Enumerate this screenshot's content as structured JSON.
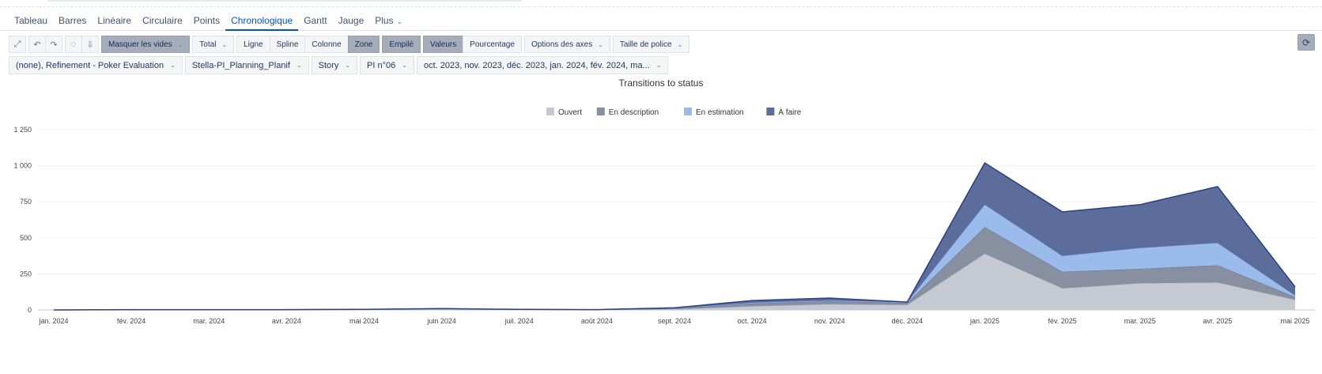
{
  "tabs": [
    {
      "label": "Tableau",
      "active": false
    },
    {
      "label": "Barres",
      "active": false
    },
    {
      "label": "Linéaire",
      "active": false
    },
    {
      "label": "Circulaire",
      "active": false
    },
    {
      "label": "Points",
      "active": false
    },
    {
      "label": "Chronologique",
      "active": true
    },
    {
      "label": "Gantt",
      "active": false
    },
    {
      "label": "Jauge",
      "active": false
    },
    {
      "label": "Plus",
      "active": false
    }
  ],
  "toolbar": {
    "masquer_vides": "Masquer les vides",
    "total": "Total",
    "ligne": "Ligne",
    "spline": "Spline",
    "colonne": "Colonne",
    "zone": "Zone",
    "empile": "Empilé",
    "valeurs": "Valeurs",
    "pourcentage": "Pourcentage",
    "options_axes": "Options des axes",
    "taille_police": "Taille de police"
  },
  "icons": {
    "expand": "⤢",
    "undo": "↶",
    "redo": "↷",
    "comment": "◌",
    "download": "⇩",
    "refresh": "⟳",
    "caret": "⌄"
  },
  "filters": [
    "(none), Refinement - Poker Evaluation",
    "Stella-PI_Planning_Planif",
    "Story",
    "PI n°06",
    "oct. 2023, nov. 2023, déc. 2023, jan. 2024, fév. 2024, ma..."
  ],
  "chart_data": {
    "type": "area",
    "stacked": true,
    "title": "Transitions to status",
    "legend_position": "top-center",
    "grid": true,
    "categories": [
      "jan. 2024",
      "fév. 2024",
      "mar. 2024",
      "avr. 2024",
      "mai 2024",
      "juin 2024",
      "juil. 2024",
      "août 2024",
      "sept. 2024",
      "oct. 2024",
      "nov. 2024",
      "déc. 2024",
      "jan. 2025",
      "fév. 2025",
      "mar. 2025",
      "avr. 2025",
      "mai 2025"
    ],
    "y_ticks": [
      "0",
      "250",
      "500",
      "750",
      "1 000",
      "1 250"
    ],
    "ylim": [
      0,
      1250
    ],
    "series": [
      {
        "name": "Ouvert",
        "color": "#c5c9d1",
        "values": [
          0,
          1,
          1,
          1,
          2,
          5,
          2,
          1,
          5,
          25,
          40,
          35,
          390,
          150,
          185,
          190,
          70
        ]
      },
      {
        "name": "En description",
        "color": "#888fa0",
        "values": [
          0,
          1,
          1,
          1,
          2,
          5,
          2,
          1,
          5,
          20,
          20,
          15,
          185,
          115,
          100,
          120,
          20
        ]
      },
      {
        "name": "En estimation",
        "color": "#9bbbec",
        "values": [
          0,
          0,
          0,
          0,
          0,
          0,
          0,
          0,
          2,
          5,
          5,
          3,
          155,
          110,
          145,
          155,
          10
        ]
      },
      {
        "name": "À faire",
        "color": "#5c6d9b",
        "values": [
          0,
          0,
          0,
          0,
          0,
          0,
          0,
          0,
          3,
          15,
          17,
          2,
          290,
          305,
          300,
          390,
          60
        ]
      }
    ]
  }
}
